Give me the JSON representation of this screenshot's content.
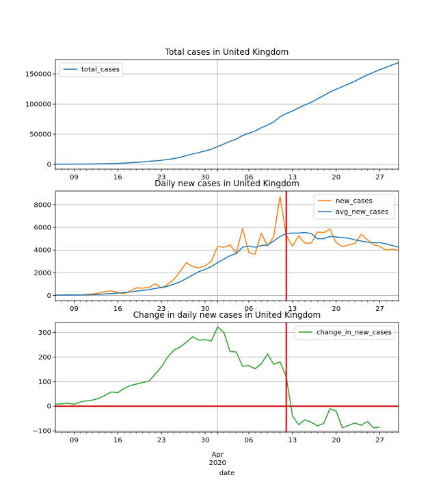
{
  "chart_data": [
    {
      "type": "line",
      "title": "Total cases in United Kingdom",
      "xlabel": "",
      "ylabel": "",
      "x_range": [
        "2020-03-06",
        "2020-04-30"
      ],
      "ylim": [
        -8000,
        174000
      ],
      "yticks": [
        0,
        50000,
        100000,
        150000
      ],
      "ytick_labels": [
        "0",
        "50000",
        "100000",
        "150000"
      ],
      "grid": true,
      "legend_position": "upper-left",
      "series": [
        {
          "name": "total_cases",
          "color": "#1f77b4",
          "x": [
            "2020-03-06",
            "2020-03-07",
            "2020-03-08",
            "2020-03-09",
            "2020-03-10",
            "2020-03-11",
            "2020-03-12",
            "2020-03-13",
            "2020-03-14",
            "2020-03-15",
            "2020-03-16",
            "2020-03-17",
            "2020-03-18",
            "2020-03-19",
            "2020-03-20",
            "2020-03-21",
            "2020-03-22",
            "2020-03-23",
            "2020-03-24",
            "2020-03-25",
            "2020-03-26",
            "2020-03-27",
            "2020-03-28",
            "2020-03-29",
            "2020-03-30",
            "2020-03-31",
            "2020-04-01",
            "2020-04-02",
            "2020-04-03",
            "2020-04-04",
            "2020-04-05",
            "2020-04-06",
            "2020-04-07",
            "2020-04-08",
            "2020-04-09",
            "2020-04-10",
            "2020-04-11",
            "2020-04-12",
            "2020-04-13",
            "2020-04-14",
            "2020-04-15",
            "2020-04-16",
            "2020-04-17",
            "2020-04-18",
            "2020-04-19",
            "2020-04-20",
            "2020-04-21",
            "2020-04-22",
            "2020-04-23",
            "2020-04-24",
            "2020-04-25",
            "2020-04-26",
            "2020-04-27",
            "2020-04-28",
            "2020-04-29",
            "2020-04-30"
          ],
          "values": [
            164,
            207,
            273,
            321,
            373,
            456,
            590,
            798,
            1140,
            1391,
            1543,
            1950,
            2626,
            3269,
            3983,
            5018,
            5683,
            6650,
            8077,
            9529,
            11658,
            14543,
            17089,
            19522,
            22141,
            25150,
            29474,
            33718,
            38168,
            41903,
            47806,
            51608,
            55242,
            60733,
            65077,
            70272,
            78991,
            84279,
            88621,
            93873,
            98476,
            103093,
            108692,
            114217,
            120067,
            124743,
            129044,
            133495,
            138078,
            143464,
            148377,
            152840,
            157149,
            161145,
            165221,
            169000
          ]
        }
      ]
    },
    {
      "type": "line",
      "title": "Daily new cases in United Kingdom",
      "xlabel": "",
      "ylabel": "",
      "x_range": [
        "2020-03-06",
        "2020-04-30"
      ],
      "ylim": [
        -450,
        9200
      ],
      "yticks": [
        0,
        2000,
        4000,
        6000,
        8000
      ],
      "ytick_labels": [
        "0",
        "2000",
        "4000",
        "6000",
        "8000"
      ],
      "grid": true,
      "legend_position": "upper-right",
      "vline": {
        "x": "2020-04-12",
        "color": "#d40000"
      },
      "series": [
        {
          "name": "new_cases",
          "color": "#ff7f0e",
          "x": [
            "2020-03-06",
            "2020-03-07",
            "2020-03-08",
            "2020-03-09",
            "2020-03-10",
            "2020-03-11",
            "2020-03-12",
            "2020-03-13",
            "2020-03-14",
            "2020-03-15",
            "2020-03-16",
            "2020-03-17",
            "2020-03-18",
            "2020-03-19",
            "2020-03-20",
            "2020-03-21",
            "2020-03-22",
            "2020-03-23",
            "2020-03-24",
            "2020-03-25",
            "2020-03-26",
            "2020-03-27",
            "2020-03-28",
            "2020-03-29",
            "2020-03-30",
            "2020-03-31",
            "2020-04-01",
            "2020-04-02",
            "2020-04-03",
            "2020-04-04",
            "2020-04-05",
            "2020-04-06",
            "2020-04-07",
            "2020-04-08",
            "2020-04-09",
            "2020-04-10",
            "2020-04-11",
            "2020-04-12",
            "2020-04-13",
            "2020-04-14",
            "2020-04-15",
            "2020-04-16",
            "2020-04-17",
            "2020-04-18",
            "2020-04-19",
            "2020-04-20",
            "2020-04-21",
            "2020-04-22",
            "2020-04-23",
            "2020-04-24",
            "2020-04-25",
            "2020-04-26",
            "2020-04-27",
            "2020-04-28",
            "2020-04-29",
            "2020-04-30"
          ],
          "values": [
            48,
            43,
            67,
            46,
            50,
            83,
            134,
            208,
            342,
            400,
            251,
            152,
            407,
            676,
            643,
            714,
            1035,
            665,
            967,
            1427,
            2129,
            2885,
            2546,
            2433,
            2619,
            3009,
            4324,
            4244,
            4450,
            3735,
            5903,
            3802,
            3634,
            5491,
            4344,
            5195,
            8719,
            5288,
            4342,
            5252,
            4603,
            4617,
            5599,
            5525,
            5850,
            4676,
            4301,
            4451,
            4583,
            5386,
            4913,
            4463,
            4309,
            3996,
            4076,
            3985
          ]
        },
        {
          "name": "avg_new_cases",
          "color": "#1f77b4",
          "x": [
            "2020-03-06",
            "2020-03-07",
            "2020-03-08",
            "2020-03-09",
            "2020-03-10",
            "2020-03-11",
            "2020-03-12",
            "2020-03-13",
            "2020-03-14",
            "2020-03-15",
            "2020-03-16",
            "2020-03-17",
            "2020-03-18",
            "2020-03-19",
            "2020-03-20",
            "2020-03-21",
            "2020-03-22",
            "2020-03-23",
            "2020-03-24",
            "2020-03-25",
            "2020-03-26",
            "2020-03-27",
            "2020-03-28",
            "2020-03-29",
            "2020-03-30",
            "2020-03-31",
            "2020-04-01",
            "2020-04-02",
            "2020-04-03",
            "2020-04-04",
            "2020-04-05",
            "2020-04-06",
            "2020-04-07",
            "2020-04-08",
            "2020-04-09",
            "2020-04-10",
            "2020-04-11",
            "2020-04-12",
            "2020-04-13",
            "2020-04-14",
            "2020-04-15",
            "2020-04-16",
            "2020-04-17",
            "2020-04-18",
            "2020-04-19",
            "2020-04-20",
            "2020-04-21",
            "2020-04-22",
            "2020-04-23",
            "2020-04-24",
            "2020-04-25",
            "2020-04-26",
            "2020-04-27",
            "2020-04-28",
            "2020-04-29",
            "2020-04-30"
          ],
          "values": [
            30,
            34,
            38,
            41,
            45,
            55,
            70,
            95,
            135,
            170,
            215,
            255,
            300,
            390,
            450,
            520,
            610,
            710,
            810,
            1000,
            1200,
            1500,
            1800,
            2100,
            2300,
            2550,
            2900,
            3200,
            3500,
            3700,
            4250,
            4350,
            4250,
            4400,
            4450,
            4800,
            5200,
            5450,
            5500,
            5500,
            5550,
            5450,
            5000,
            5000,
            5200,
            5150,
            5100,
            5050,
            4900,
            4800,
            4700,
            4650,
            4650,
            4550,
            4400,
            4250
          ]
        }
      ]
    },
    {
      "type": "line",
      "title": "Change in daily new cases in United Kingdom",
      "xlabel": "date",
      "ylabel": "",
      "x_range": [
        "2020-03-06",
        "2020-04-30"
      ],
      "xticks": [
        "2020-03-09",
        "2020-03-16",
        "2020-03-23",
        "2020-03-30",
        "2020-04-01",
        "2020-04-06",
        "2020-04-13",
        "2020-04-20",
        "2020-04-27"
      ],
      "xtick_labels": [
        "09",
        "16",
        "23",
        "30",
        "Apr\n2020",
        "06",
        "13",
        "20",
        "27"
      ],
      "ylim": [
        -105,
        340
      ],
      "yticks": [
        -100,
        0,
        100,
        200,
        300
      ],
      "ytick_labels": [
        "−100",
        "0",
        "100",
        "200",
        "300"
      ],
      "grid": true,
      "legend_position": "upper-right",
      "vline": {
        "x": "2020-04-12",
        "color": "#d40000"
      },
      "hline": {
        "y": 0,
        "color": "#d40000"
      },
      "series": [
        {
          "name": "change_in_new_cases",
          "color": "#2ca02c",
          "x": [
            "2020-03-06",
            "2020-03-07",
            "2020-03-08",
            "2020-03-09",
            "2020-03-10",
            "2020-03-11",
            "2020-03-12",
            "2020-03-13",
            "2020-03-14",
            "2020-03-15",
            "2020-03-16",
            "2020-03-17",
            "2020-03-18",
            "2020-03-19",
            "2020-03-20",
            "2020-03-21",
            "2020-03-22",
            "2020-03-23",
            "2020-03-24",
            "2020-03-25",
            "2020-03-26",
            "2020-03-27",
            "2020-03-28",
            "2020-03-29",
            "2020-03-30",
            "2020-03-31",
            "2020-04-01",
            "2020-04-02",
            "2020-04-03",
            "2020-04-04",
            "2020-04-05",
            "2020-04-06",
            "2020-04-07",
            "2020-04-08",
            "2020-04-09",
            "2020-04-10",
            "2020-04-11",
            "2020-04-12",
            "2020-04-13",
            "2020-04-14",
            "2020-04-15",
            "2020-04-16",
            "2020-04-17",
            "2020-04-18",
            "2020-04-19",
            "2020-04-20",
            "2020-04-21",
            "2020-04-22",
            "2020-04-23",
            "2020-04-24",
            "2020-04-25",
            "2020-04-26",
            "2020-04-27",
            "2020-04-28"
          ],
          "values": [
            8,
            10,
            12,
            8,
            17,
            22,
            25,
            32,
            45,
            58,
            55,
            72,
            84,
            90,
            96,
            102,
            130,
            160,
            200,
            228,
            240,
            260,
            282,
            268,
            270,
            265,
            322,
            300,
            222,
            220,
            162,
            165,
            152,
            172,
            212,
            170,
            180,
            120,
            -40,
            -75,
            -55,
            -65,
            -80,
            -70,
            -10,
            -20,
            -88,
            -78,
            -68,
            -78,
            -62,
            -88,
            -85,
            null
          ]
        }
      ]
    }
  ]
}
